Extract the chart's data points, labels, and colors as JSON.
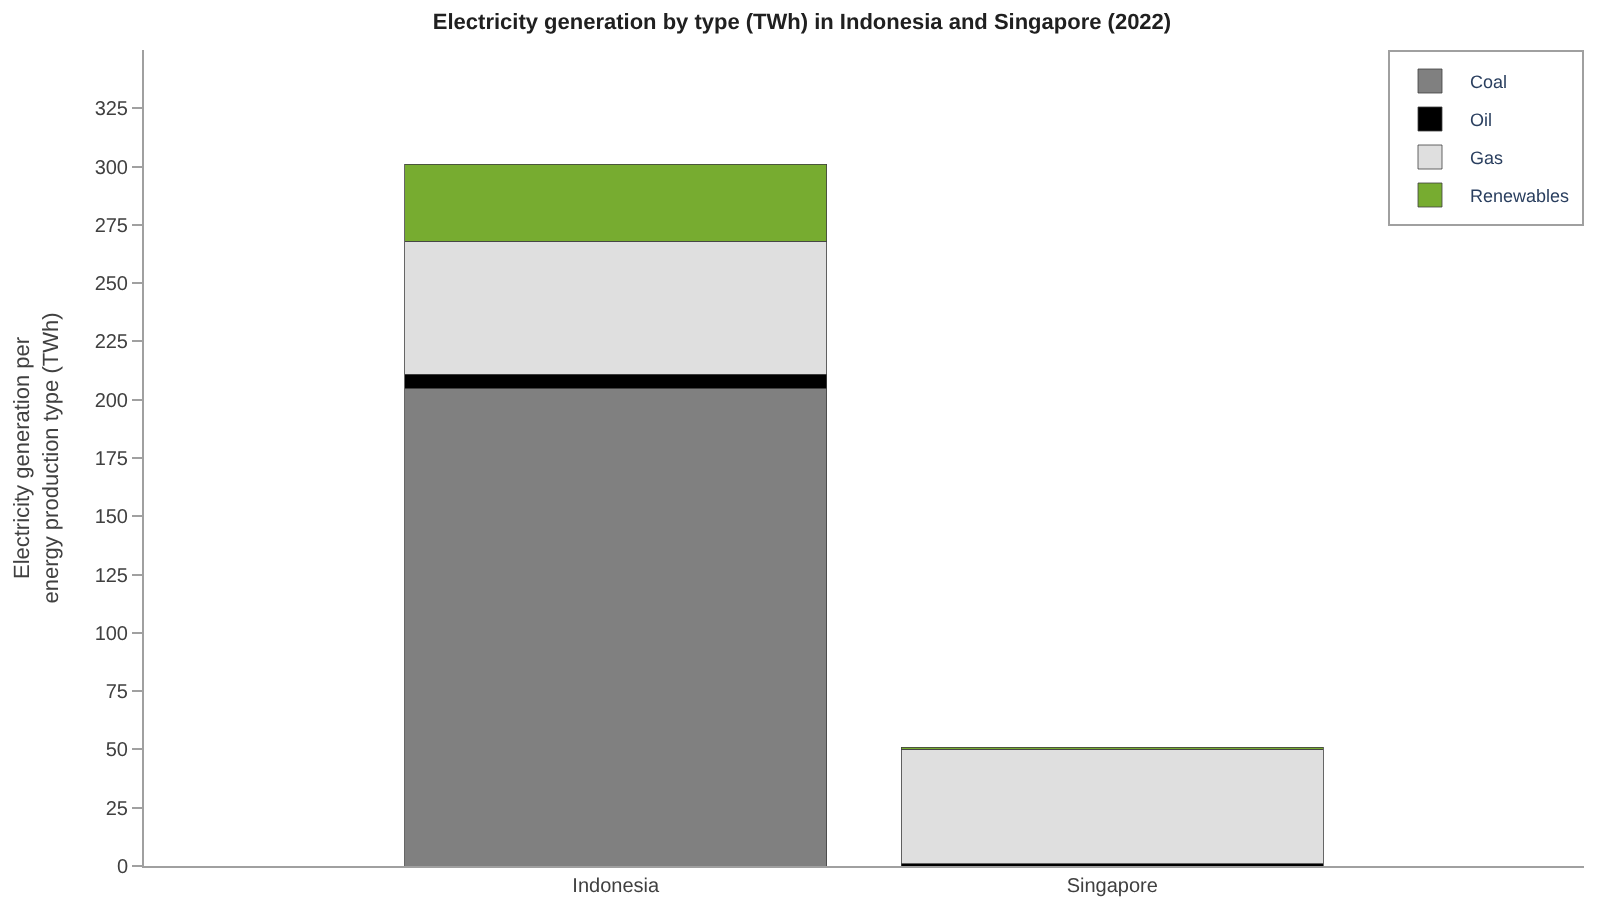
{
  "chart_data": {
    "type": "bar",
    "title": "Electricity generation by type (TWh) in Indonesia and Singapore (2022)",
    "ylabel": "Electricity generation per\nenergy production type (TWh)",
    "categories": [
      "Indonesia",
      "Singapore"
    ],
    "stacked": true,
    "series": [
      {
        "name": "Coal",
        "color": "#808080",
        "values": [
          205,
          0
        ]
      },
      {
        "name": "Oil",
        "color": "#000000",
        "values": [
          6,
          1
        ]
      },
      {
        "name": "Gas",
        "color": "#dfdfdf",
        "values": [
          57,
          49
        ]
      },
      {
        "name": "Renewables",
        "color": "#77ac30",
        "values": [
          33,
          1
        ]
      }
    ],
    "ylim": [
      0,
      350
    ],
    "yticks": [
      0,
      25,
      50,
      75,
      100,
      125,
      150,
      175,
      200,
      225,
      250,
      275,
      300,
      325
    ],
    "legend": "top right"
  }
}
